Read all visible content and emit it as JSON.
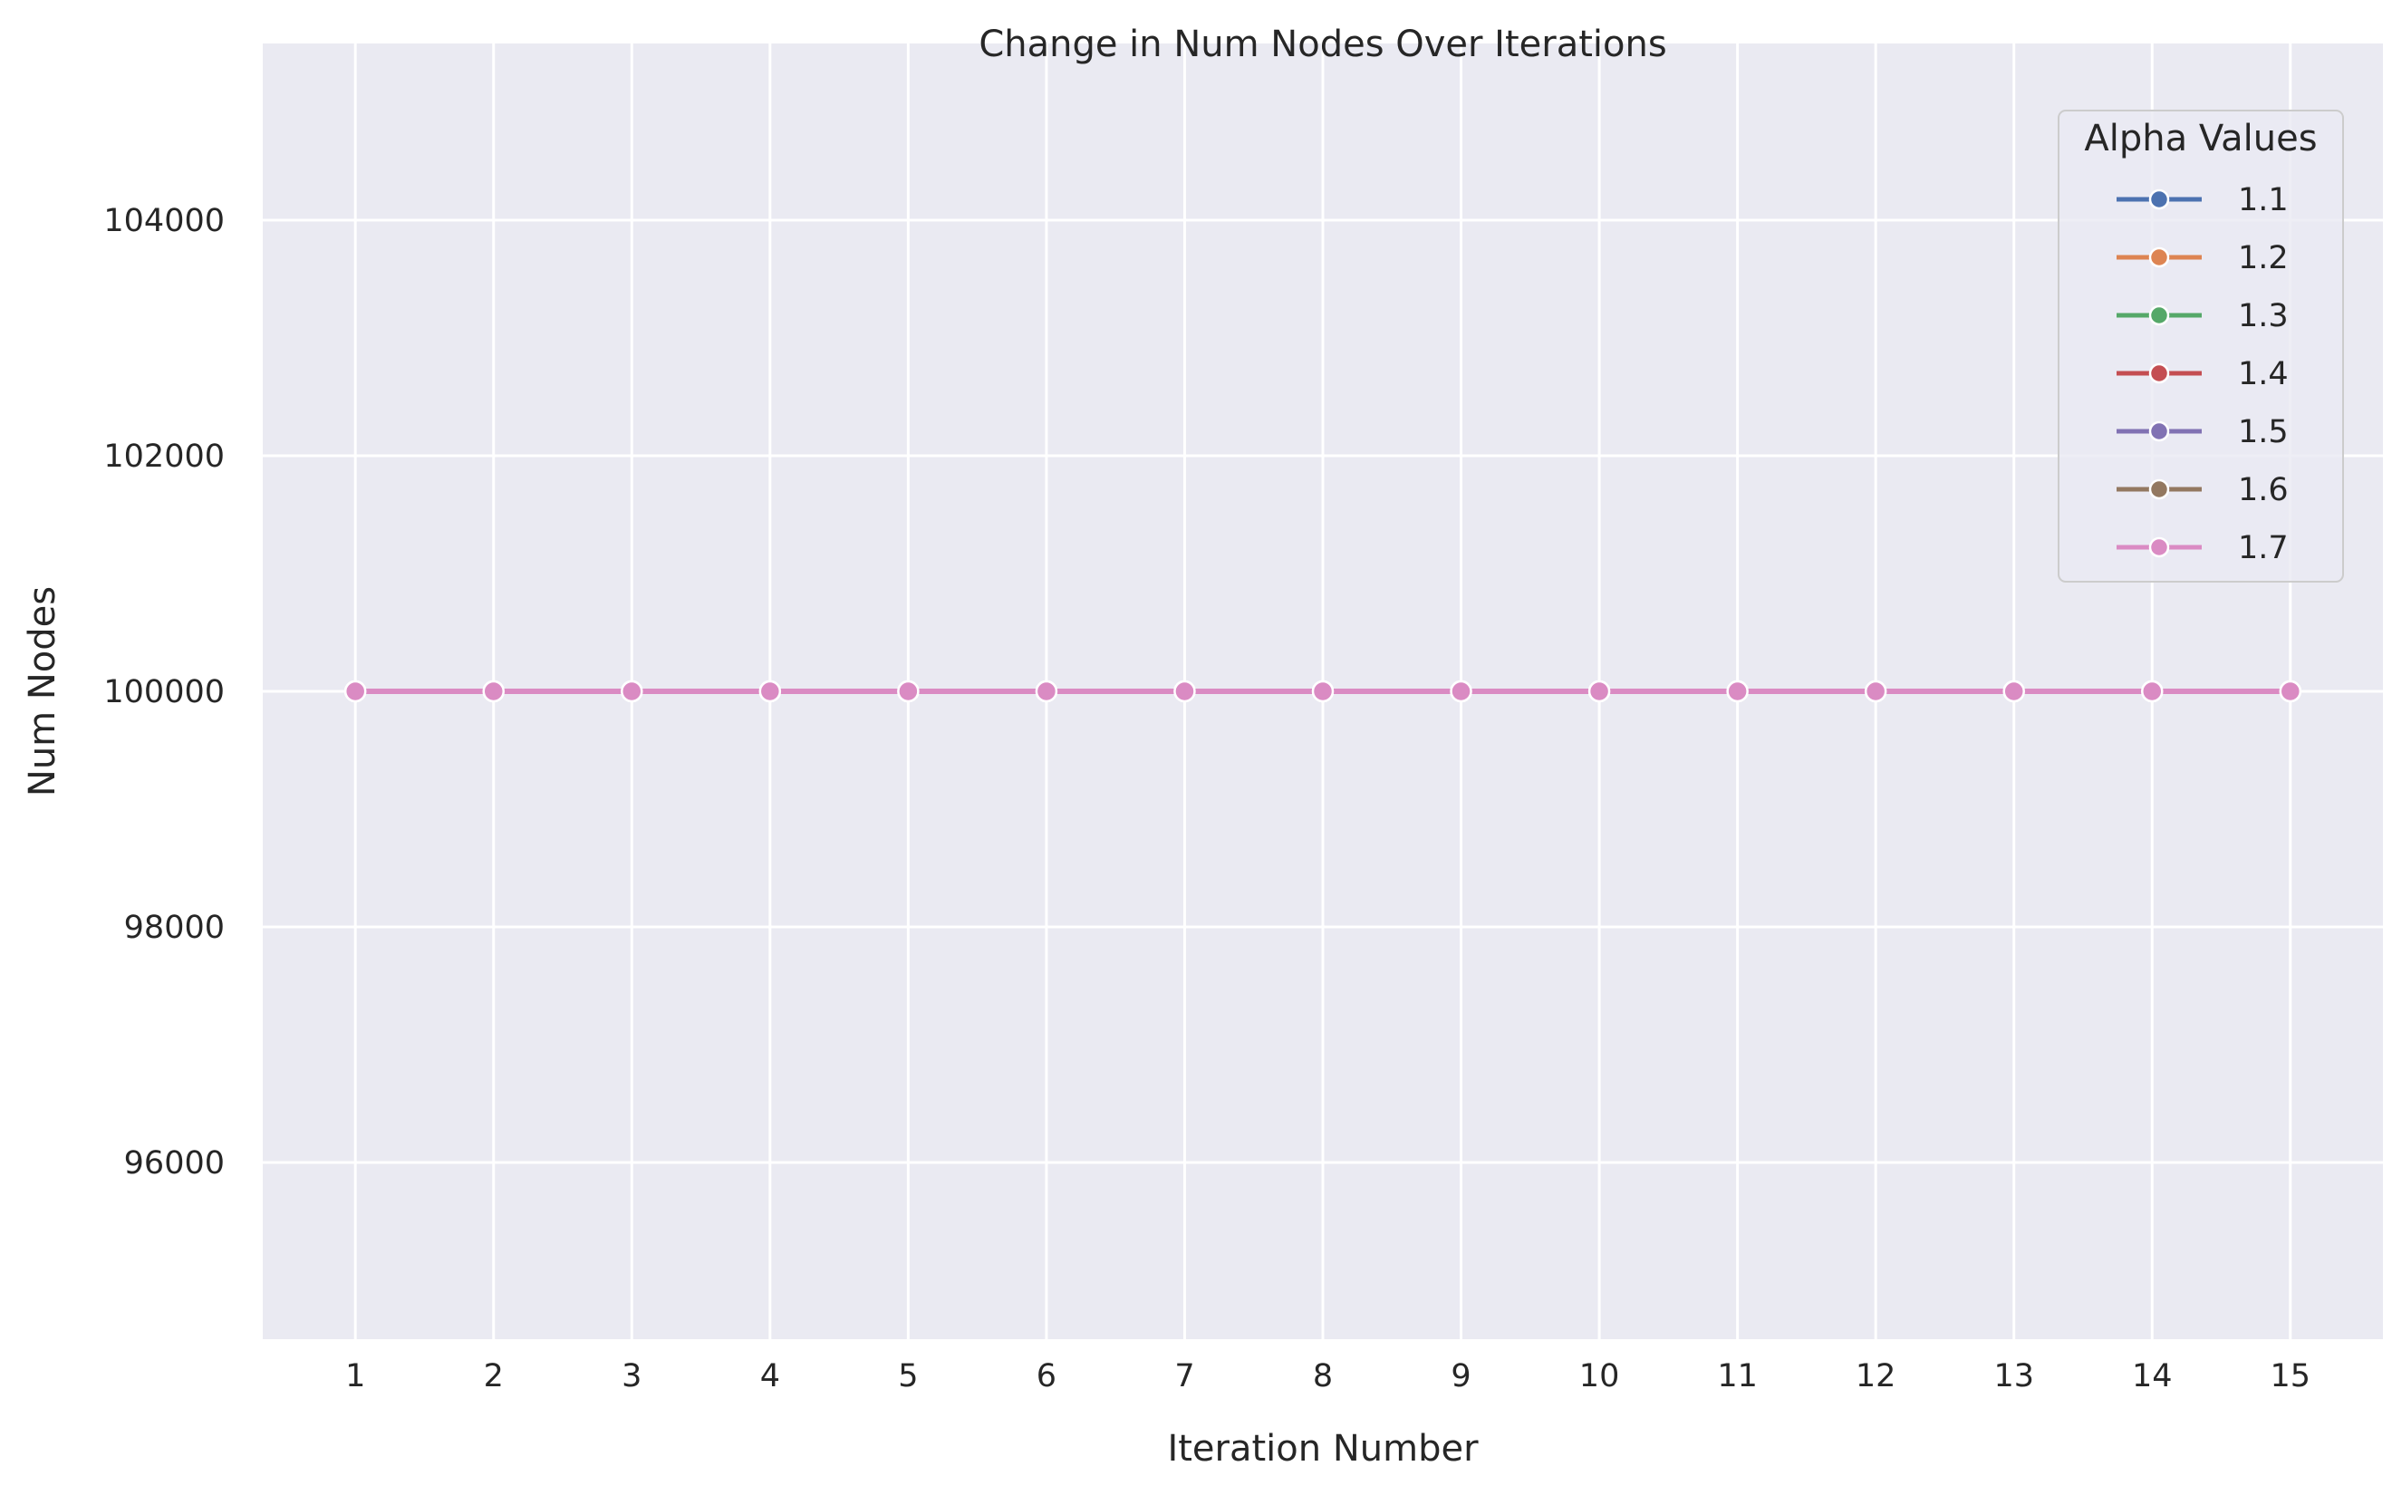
{
  "chart_data": {
    "type": "line",
    "title": "Change in Num Nodes Over Iterations",
    "xlabel": "Iteration Number",
    "ylabel": "Num Nodes",
    "x": [
      1,
      2,
      3,
      4,
      5,
      6,
      7,
      8,
      9,
      10,
      11,
      12,
      13,
      14,
      15
    ],
    "xlim": [
      0.33,
      15.67
    ],
    "ylim": [
      94500,
      105500
    ],
    "yticks": [
      96000,
      98000,
      100000,
      102000,
      104000
    ],
    "grid": true,
    "legend": {
      "title": "Alpha Values",
      "placement": "top-right"
    },
    "series": [
      {
        "name": "1.1",
        "color": "#4c72b0",
        "values": [
          100000,
          100000,
          100000,
          100000,
          100000,
          100000,
          100000,
          100000,
          100000,
          100000,
          100000,
          100000,
          100000,
          100000,
          100000
        ]
      },
      {
        "name": "1.2",
        "color": "#dd8452",
        "values": [
          100000,
          100000,
          100000,
          100000,
          100000,
          100000,
          100000,
          100000,
          100000,
          100000,
          100000,
          100000,
          100000,
          100000,
          100000
        ]
      },
      {
        "name": "1.3",
        "color": "#55a868",
        "values": [
          100000,
          100000,
          100000,
          100000,
          100000,
          100000,
          100000,
          100000,
          100000,
          100000,
          100000,
          100000,
          100000,
          100000,
          100000
        ]
      },
      {
        "name": "1.4",
        "color": "#c44e52",
        "values": [
          100000,
          100000,
          100000,
          100000,
          100000,
          100000,
          100000,
          100000,
          100000,
          100000,
          100000,
          100000,
          100000,
          100000,
          100000
        ]
      },
      {
        "name": "1.5",
        "color": "#8172b3",
        "values": [
          100000,
          100000,
          100000,
          100000,
          100000,
          100000,
          100000,
          100000,
          100000,
          100000,
          100000,
          100000,
          100000,
          100000,
          100000
        ]
      },
      {
        "name": "1.6",
        "color": "#937860",
        "values": [
          100000,
          100000,
          100000,
          100000,
          100000,
          100000,
          100000,
          100000,
          100000,
          100000,
          100000,
          100000,
          100000,
          100000,
          100000
        ]
      },
      {
        "name": "1.7",
        "color": "#da8bc3",
        "values": [
          100000,
          100000,
          100000,
          100000,
          100000,
          100000,
          100000,
          100000,
          100000,
          100000,
          100000,
          100000,
          100000,
          100000,
          100000
        ]
      }
    ],
    "colors": {
      "background": "#eaeaf2",
      "grid": "#ffffff"
    }
  }
}
